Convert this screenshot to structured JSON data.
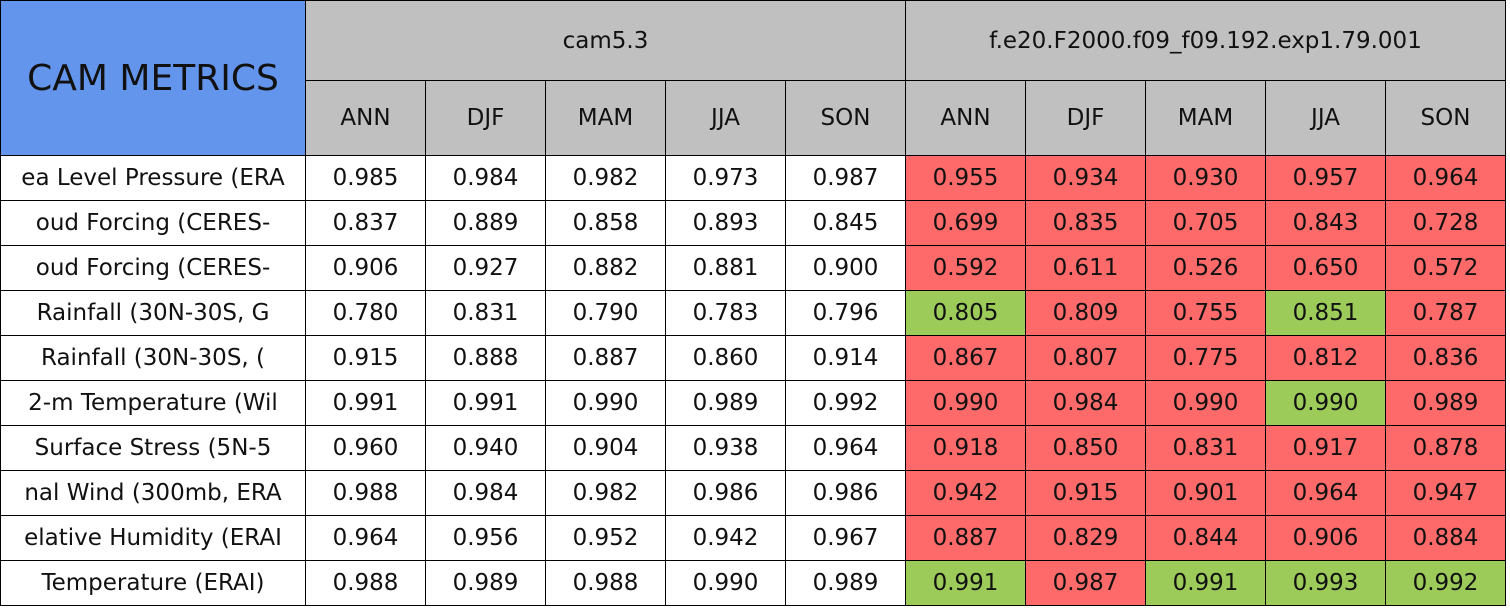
{
  "table": {
    "title": "CAM METRICS",
    "groups": [
      "cam5.3",
      "f.e20.F2000.f09_f09.192.exp1.79.001"
    ],
    "seasons": [
      "ANN",
      "DJF",
      "MAM",
      "JJA",
      "SON"
    ],
    "colors": {
      "red": "#fe6a6a",
      "green": "#9ccb5a"
    },
    "rows": [
      {
        "label": "ea Level Pressure (ERA",
        "cam": [
          "0.985",
          "0.984",
          "0.982",
          "0.973",
          "0.987"
        ],
        "exp": [
          "0.955",
          "0.934",
          "0.930",
          "0.957",
          "0.964"
        ],
        "exp_colors": [
          "red",
          "red",
          "red",
          "red",
          "red"
        ]
      },
      {
        "label": "oud Forcing (CERES-",
        "cam": [
          "0.837",
          "0.889",
          "0.858",
          "0.893",
          "0.845"
        ],
        "exp": [
          "0.699",
          "0.835",
          "0.705",
          "0.843",
          "0.728"
        ],
        "exp_colors": [
          "red",
          "red",
          "red",
          "red",
          "red"
        ]
      },
      {
        "label": "oud Forcing (CERES-",
        "cam": [
          "0.906",
          "0.927",
          "0.882",
          "0.881",
          "0.900"
        ],
        "exp": [
          "0.592",
          "0.611",
          "0.526",
          "0.650",
          "0.572"
        ],
        "exp_colors": [
          "red",
          "red",
          "red",
          "red",
          "red"
        ]
      },
      {
        "label": "Rainfall (30N-30S, G",
        "cam": [
          "0.780",
          "0.831",
          "0.790",
          "0.783",
          "0.796"
        ],
        "exp": [
          "0.805",
          "0.809",
          "0.755",
          "0.851",
          "0.787"
        ],
        "exp_colors": [
          "green",
          "red",
          "red",
          "green",
          "red"
        ]
      },
      {
        "label": "Rainfall (30N-30S, (",
        "cam": [
          "0.915",
          "0.888",
          "0.887",
          "0.860",
          "0.914"
        ],
        "exp": [
          "0.867",
          "0.807",
          "0.775",
          "0.812",
          "0.836"
        ],
        "exp_colors": [
          "red",
          "red",
          "red",
          "red",
          "red"
        ]
      },
      {
        "label": "2-m Temperature (Wil",
        "cam": [
          "0.991",
          "0.991",
          "0.990",
          "0.989",
          "0.992"
        ],
        "exp": [
          "0.990",
          "0.984",
          "0.990",
          "0.990",
          "0.989"
        ],
        "exp_colors": [
          "red",
          "red",
          "red",
          "green",
          "red"
        ]
      },
      {
        "label": "Surface Stress (5N-5",
        "cam": [
          "0.960",
          "0.940",
          "0.904",
          "0.938",
          "0.964"
        ],
        "exp": [
          "0.918",
          "0.850",
          "0.831",
          "0.917",
          "0.878"
        ],
        "exp_colors": [
          "red",
          "red",
          "red",
          "red",
          "red"
        ]
      },
      {
        "label": "nal Wind (300mb, ERA",
        "cam": [
          "0.988",
          "0.984",
          "0.982",
          "0.986",
          "0.986"
        ],
        "exp": [
          "0.942",
          "0.915",
          "0.901",
          "0.964",
          "0.947"
        ],
        "exp_colors": [
          "red",
          "red",
          "red",
          "red",
          "red"
        ]
      },
      {
        "label": "elative Humidity (ERAI",
        "cam": [
          "0.964",
          "0.956",
          "0.952",
          "0.942",
          "0.967"
        ],
        "exp": [
          "0.887",
          "0.829",
          "0.844",
          "0.906",
          "0.884"
        ],
        "exp_colors": [
          "red",
          "red",
          "red",
          "red",
          "red"
        ]
      },
      {
        "label": "Temperature (ERAI)",
        "cam": [
          "0.988",
          "0.989",
          "0.988",
          "0.990",
          "0.989"
        ],
        "exp": [
          "0.991",
          "0.987",
          "0.991",
          "0.993",
          "0.992"
        ],
        "exp_colors": [
          "green",
          "red",
          "green",
          "green",
          "green"
        ]
      }
    ]
  }
}
